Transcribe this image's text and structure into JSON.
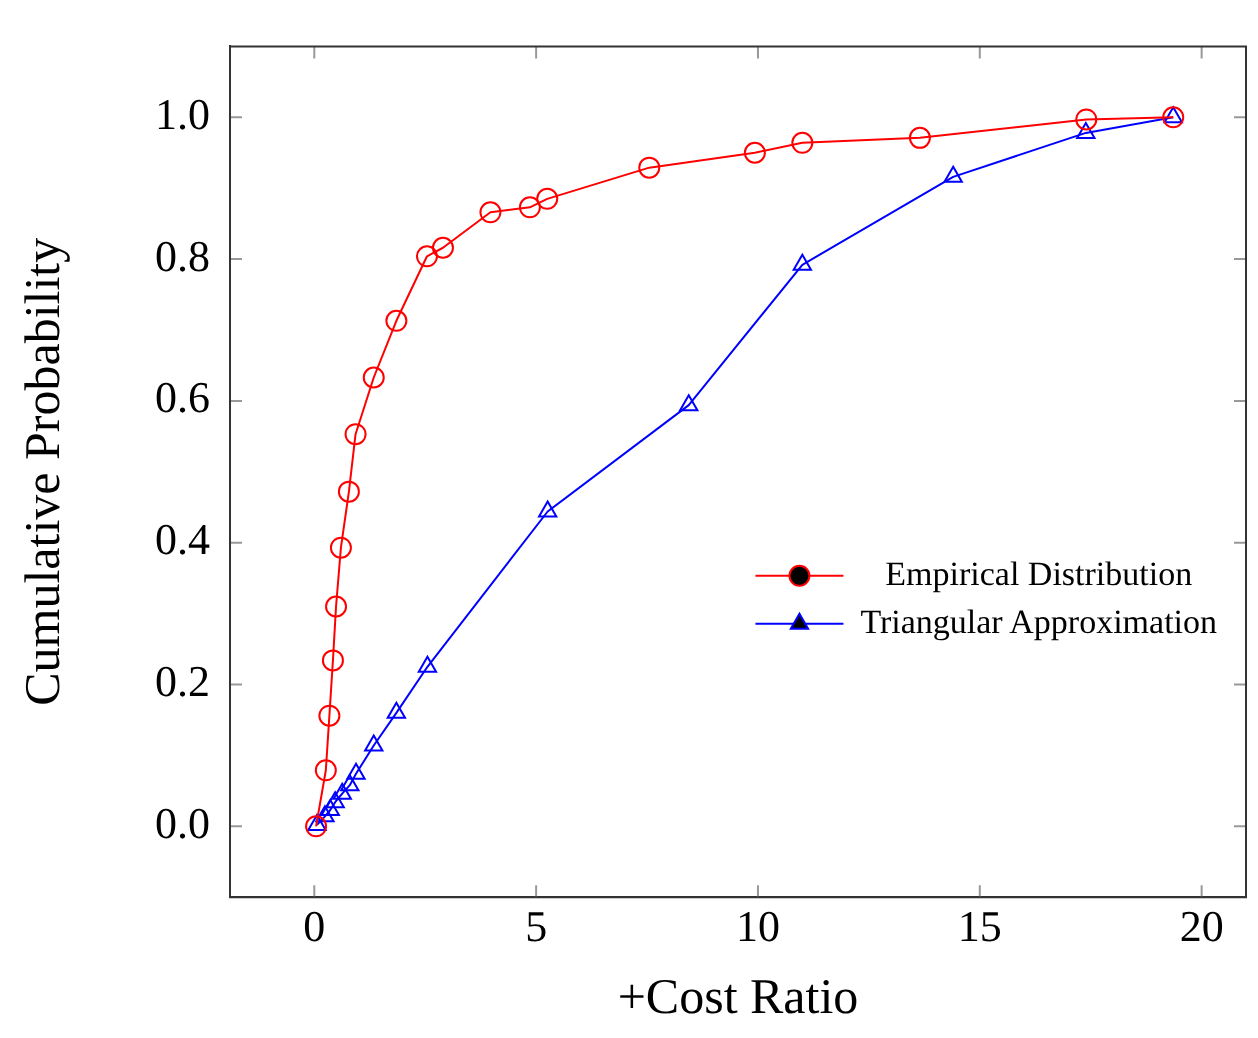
{
  "chart_data": {
    "type": "line",
    "xlabel": "+Cost Ratio",
    "ylabel": "Cumulative Probability",
    "xlim": [
      -1.9,
      21
    ],
    "xticks": [
      0,
      5,
      10,
      15,
      20
    ],
    "ylim": [
      -0.1,
      1.1
    ],
    "yticks": [
      {
        "value": 0,
        "label": "0.0"
      },
      {
        "value": 0.2,
        "label": "0.2"
      },
      {
        "value": 0.4,
        "label": "0.4"
      },
      {
        "value": 0.6,
        "label": "0.6"
      },
      {
        "value": 0.8,
        "label": "0.8"
      },
      {
        "value": 1,
        "label": "1.0"
      }
    ],
    "grid": false,
    "legend": "right",
    "line_style": "solid",
    "series": [
      {
        "name": "Empirical Distribution",
        "color": "#ff0000",
        "marker": "circle",
        "x": [
          0.04,
          0.26,
          0.34,
          0.42,
          0.49,
          0.6,
          0.78,
          0.93,
          1.34,
          1.85,
          2.54,
          2.9,
          3.97,
          4.86,
          5.25,
          7.55,
          9.93,
          11.0,
          13.65,
          17.4,
          19.36
        ],
        "values": [
          0,
          0.079,
          0.156,
          0.234,
          0.31,
          0.393,
          0.472,
          0.553,
          0.633,
          0.713,
          0.804,
          0.816,
          0.866,
          0.873,
          0.885,
          0.929,
          0.95,
          0.964,
          0.971,
          0.997,
          1.0
        ]
      },
      {
        "name": "Triangular Approximation",
        "color": "#0000ff",
        "marker": "triangle",
        "x": [
          0.06,
          0.24,
          0.36,
          0.47,
          0.63,
          0.8,
          0.94,
          1.34,
          1.85,
          2.55,
          5.26,
          8.44,
          11.0,
          14.4,
          17.39,
          19.36
        ],
        "values": [
          0.002,
          0.014,
          0.023,
          0.034,
          0.046,
          0.058,
          0.074,
          0.114,
          0.16,
          0.225,
          0.444,
          0.594,
          0.792,
          0.916,
          0.978,
          1.0
        ]
      }
    ]
  }
}
